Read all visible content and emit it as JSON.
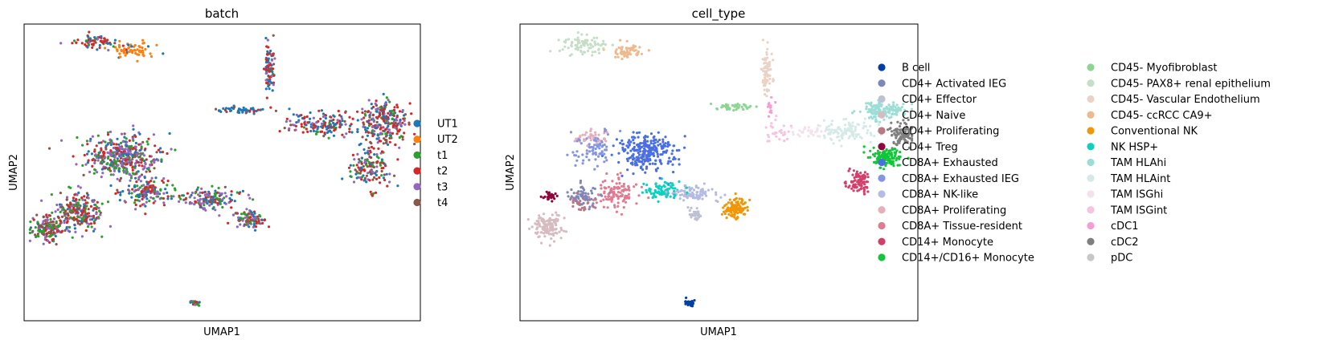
{
  "chart_data": [
    {
      "type": "scatter",
      "title": "batch",
      "xlabel": "UMAP1",
      "ylabel": "UMAP2",
      "grid": false,
      "ticks": false,
      "legend_placement": "right",
      "legend": [
        {
          "label": "UT1",
          "color": "#1f77b4"
        },
        {
          "label": "UT2",
          "color": "#ff7f0e"
        },
        {
          "label": "t1",
          "color": "#2ca02c"
        },
        {
          "label": "t2",
          "color": "#d62728"
        },
        {
          "label": "t3",
          "color": "#9467bd"
        },
        {
          "label": "t4",
          "color": "#8c564b"
        }
      ],
      "clusters": [
        {
          "center": [
            0.18,
            0.06
          ],
          "spread": [
            0.05,
            0.022
          ],
          "count": 70,
          "mix": [
            3,
            0,
            1,
            10,
            1,
            1
          ]
        },
        {
          "center": [
            0.27,
            0.09
          ],
          "spread": [
            0.05,
            0.025
          ],
          "count": 70,
          "mix": [
            1,
            12,
            0,
            1,
            0,
            0
          ]
        },
        {
          "center": [
            0.62,
            0.15
          ],
          "spread": [
            0.013,
            0.09
          ],
          "count": 90,
          "mix": [
            6,
            0,
            1,
            5,
            2,
            1
          ]
        },
        {
          "center": [
            0.55,
            0.29
          ],
          "spread": [
            0.07,
            0.012
          ],
          "count": 50,
          "mix": [
            8,
            0,
            0,
            1,
            0,
            1
          ]
        },
        {
          "center": [
            0.75,
            0.34
          ],
          "spread": [
            0.09,
            0.04
          ],
          "count": 160,
          "mix": [
            5,
            0,
            1,
            5,
            2,
            1
          ]
        },
        {
          "center": [
            0.91,
            0.33
          ],
          "spread": [
            0.06,
            0.08
          ],
          "count": 260,
          "mix": [
            4,
            0,
            2,
            5,
            3,
            2
          ]
        },
        {
          "center": [
            0.87,
            0.48
          ],
          "spread": [
            0.05,
            0.07
          ],
          "count": 140,
          "mix": [
            3,
            0,
            2,
            4,
            2,
            3
          ]
        },
        {
          "center": [
            0.25,
            0.45
          ],
          "spread": [
            0.09,
            0.07
          ],
          "count": 420,
          "mix": [
            2,
            0,
            3,
            3,
            4,
            1
          ]
        },
        {
          "center": [
            0.14,
            0.63
          ],
          "spread": [
            0.06,
            0.07
          ],
          "count": 240,
          "mix": [
            2,
            0,
            3,
            3,
            3,
            2
          ]
        },
        {
          "center": [
            0.06,
            0.69
          ],
          "spread": [
            0.04,
            0.04
          ],
          "count": 150,
          "mix": [
            1,
            0,
            4,
            3,
            2,
            3
          ]
        },
        {
          "center": [
            0.31,
            0.57
          ],
          "spread": [
            0.06,
            0.05
          ],
          "count": 160,
          "mix": [
            3,
            0,
            2,
            3,
            3,
            1
          ]
        },
        {
          "center": [
            0.47,
            0.59
          ],
          "spread": [
            0.07,
            0.035
          ],
          "count": 160,
          "mix": [
            3,
            0,
            2,
            2,
            3,
            1
          ]
        },
        {
          "center": [
            0.57,
            0.66
          ],
          "spread": [
            0.04,
            0.03
          ],
          "count": 90,
          "mix": [
            2,
            0,
            2,
            3,
            3,
            3
          ]
        },
        {
          "center": [
            0.43,
            0.94
          ],
          "spread": [
            0.012,
            0.01
          ],
          "count": 30,
          "mix": [
            1,
            0,
            3,
            1,
            2,
            1
          ]
        }
      ]
    },
    {
      "type": "scatter",
      "title": "cell_type",
      "xlabel": "UMAP1",
      "ylabel": "UMAP2",
      "grid": false,
      "ticks": false,
      "legend_placement": "right",
      "legend": [
        {
          "label": "B cell",
          "color": "#023fa5"
        },
        {
          "label": "CD4+ Activated IEG",
          "color": "#7d87b9"
        },
        {
          "label": "CD4+ Effector",
          "color": "#bec1d4"
        },
        {
          "label": "CD4+ Naive",
          "color": "#d6bcc0"
        },
        {
          "label": "CD4+ Proliferating",
          "color": "#bb7784"
        },
        {
          "label": "CD4+ Treg",
          "color": "#8e063b"
        },
        {
          "label": "CD8A+ Exhausted",
          "color": "#4a6fe3"
        },
        {
          "label": "CD8A+ Exhausted IEG",
          "color": "#8595e1"
        },
        {
          "label": "CD8A+ NK-like",
          "color": "#b5bbe3"
        },
        {
          "label": "CD8A+ Proliferating",
          "color": "#e6afb9"
        },
        {
          "label": "CD8A+ Tissue-resident",
          "color": "#e07b91"
        },
        {
          "label": "CD14+ Monocyte",
          "color": "#d33f6a"
        },
        {
          "label": "CD14+/CD16+ Monocyte",
          "color": "#11c638"
        },
        {
          "label": "CD45- Myofibroblast",
          "color": "#8dd593"
        },
        {
          "label": "CD45- PAX8+ renal epithelium",
          "color": "#c6dec7"
        },
        {
          "label": "CD45- Vascular Endothelium",
          "color": "#ead3c6"
        },
        {
          "label": "CD45- ccRCC CA9+",
          "color": "#f0b98d"
        },
        {
          "label": "Conventional NK",
          "color": "#ef9708"
        },
        {
          "label": "NK HSP+",
          "color": "#0fcfc0"
        },
        {
          "label": "TAM HLAhi",
          "color": "#9cded6"
        },
        {
          "label": "TAM HLAint",
          "color": "#d5eae7"
        },
        {
          "label": "TAM ISGhi",
          "color": "#f3e1eb"
        },
        {
          "label": "TAM ISGint",
          "color": "#f6c4e1"
        },
        {
          "label": "cDC1",
          "color": "#f79cd4"
        },
        {
          "label": "cDC2",
          "color": "#7f7f7f"
        },
        {
          "label": "pDC",
          "color": "#c7c7c7"
        }
      ],
      "clusters": [
        {
          "center": [
            0.16,
            0.07
          ],
          "spread": [
            0.06,
            0.03
          ],
          "count": 90,
          "cat": 14
        },
        {
          "center": [
            0.27,
            0.09
          ],
          "spread": [
            0.04,
            0.025
          ],
          "count": 60,
          "cat": 16
        },
        {
          "center": [
            0.62,
            0.17
          ],
          "spread": [
            0.014,
            0.08
          ],
          "count": 80,
          "cat": 15
        },
        {
          "center": [
            0.54,
            0.28
          ],
          "spread": [
            0.06,
            0.012
          ],
          "count": 40,
          "cat": 13
        },
        {
          "center": [
            0.82,
            0.36
          ],
          "spread": [
            0.07,
            0.04
          ],
          "count": 110,
          "cat": 20
        },
        {
          "center": [
            0.91,
            0.29
          ],
          "spread": [
            0.06,
            0.03
          ],
          "count": 140,
          "cat": 19
        },
        {
          "center": [
            0.96,
            0.37
          ],
          "spread": [
            0.03,
            0.04
          ],
          "count": 90,
          "cat": 24
        },
        {
          "center": [
            0.92,
            0.45
          ],
          "spread": [
            0.04,
            0.03
          ],
          "count": 120,
          "cat": 12
        },
        {
          "center": [
            0.85,
            0.53
          ],
          "spread": [
            0.03,
            0.04
          ],
          "count": 80,
          "cat": 11
        },
        {
          "center": [
            0.65,
            0.36
          ],
          "spread": [
            0.03,
            0.04
          ],
          "count": 30,
          "cat": 22
        },
        {
          "center": [
            0.73,
            0.36
          ],
          "spread": [
            0.05,
            0.02
          ],
          "count": 30,
          "cat": 21
        },
        {
          "center": [
            0.63,
            0.28
          ],
          "spread": [
            0.01,
            0.03
          ],
          "count": 15,
          "cat": 23
        },
        {
          "center": [
            0.32,
            0.43
          ],
          "spread": [
            0.07,
            0.06
          ],
          "count": 260,
          "cat": 6
        },
        {
          "center": [
            0.19,
            0.42
          ],
          "spread": [
            0.05,
            0.06
          ],
          "count": 80,
          "cat": 7
        },
        {
          "center": [
            0.18,
            0.38
          ],
          "spread": [
            0.04,
            0.02
          ],
          "count": 40,
          "cat": 9
        },
        {
          "center": [
            0.24,
            0.57
          ],
          "spread": [
            0.05,
            0.05
          ],
          "count": 110,
          "cat": 10
        },
        {
          "center": [
            0.16,
            0.58
          ],
          "spread": [
            0.04,
            0.04
          ],
          "count": 60,
          "cat": 1
        },
        {
          "center": [
            0.16,
            0.61
          ],
          "spread": [
            0.03,
            0.03
          ],
          "count": 30,
          "cat": 4
        },
        {
          "center": [
            0.075,
            0.58
          ],
          "spread": [
            0.015,
            0.015
          ],
          "count": 30,
          "cat": 5
        },
        {
          "center": [
            0.07,
            0.68
          ],
          "spread": [
            0.04,
            0.04
          ],
          "count": 130,
          "cat": 3
        },
        {
          "center": [
            0.36,
            0.56
          ],
          "spread": [
            0.05,
            0.03
          ],
          "count": 80,
          "cat": 18
        },
        {
          "center": [
            0.44,
            0.57
          ],
          "spread": [
            0.06,
            0.03
          ],
          "count": 90,
          "cat": 8
        },
        {
          "center": [
            0.44,
            0.64
          ],
          "spread": [
            0.02,
            0.02
          ],
          "count": 30,
          "cat": 2
        },
        {
          "center": [
            0.54,
            0.62
          ],
          "spread": [
            0.03,
            0.035
          ],
          "count": 110,
          "cat": 17
        },
        {
          "center": [
            0.43,
            0.94
          ],
          "spread": [
            0.012,
            0.01
          ],
          "count": 40,
          "cat": 0
        }
      ]
    }
  ]
}
